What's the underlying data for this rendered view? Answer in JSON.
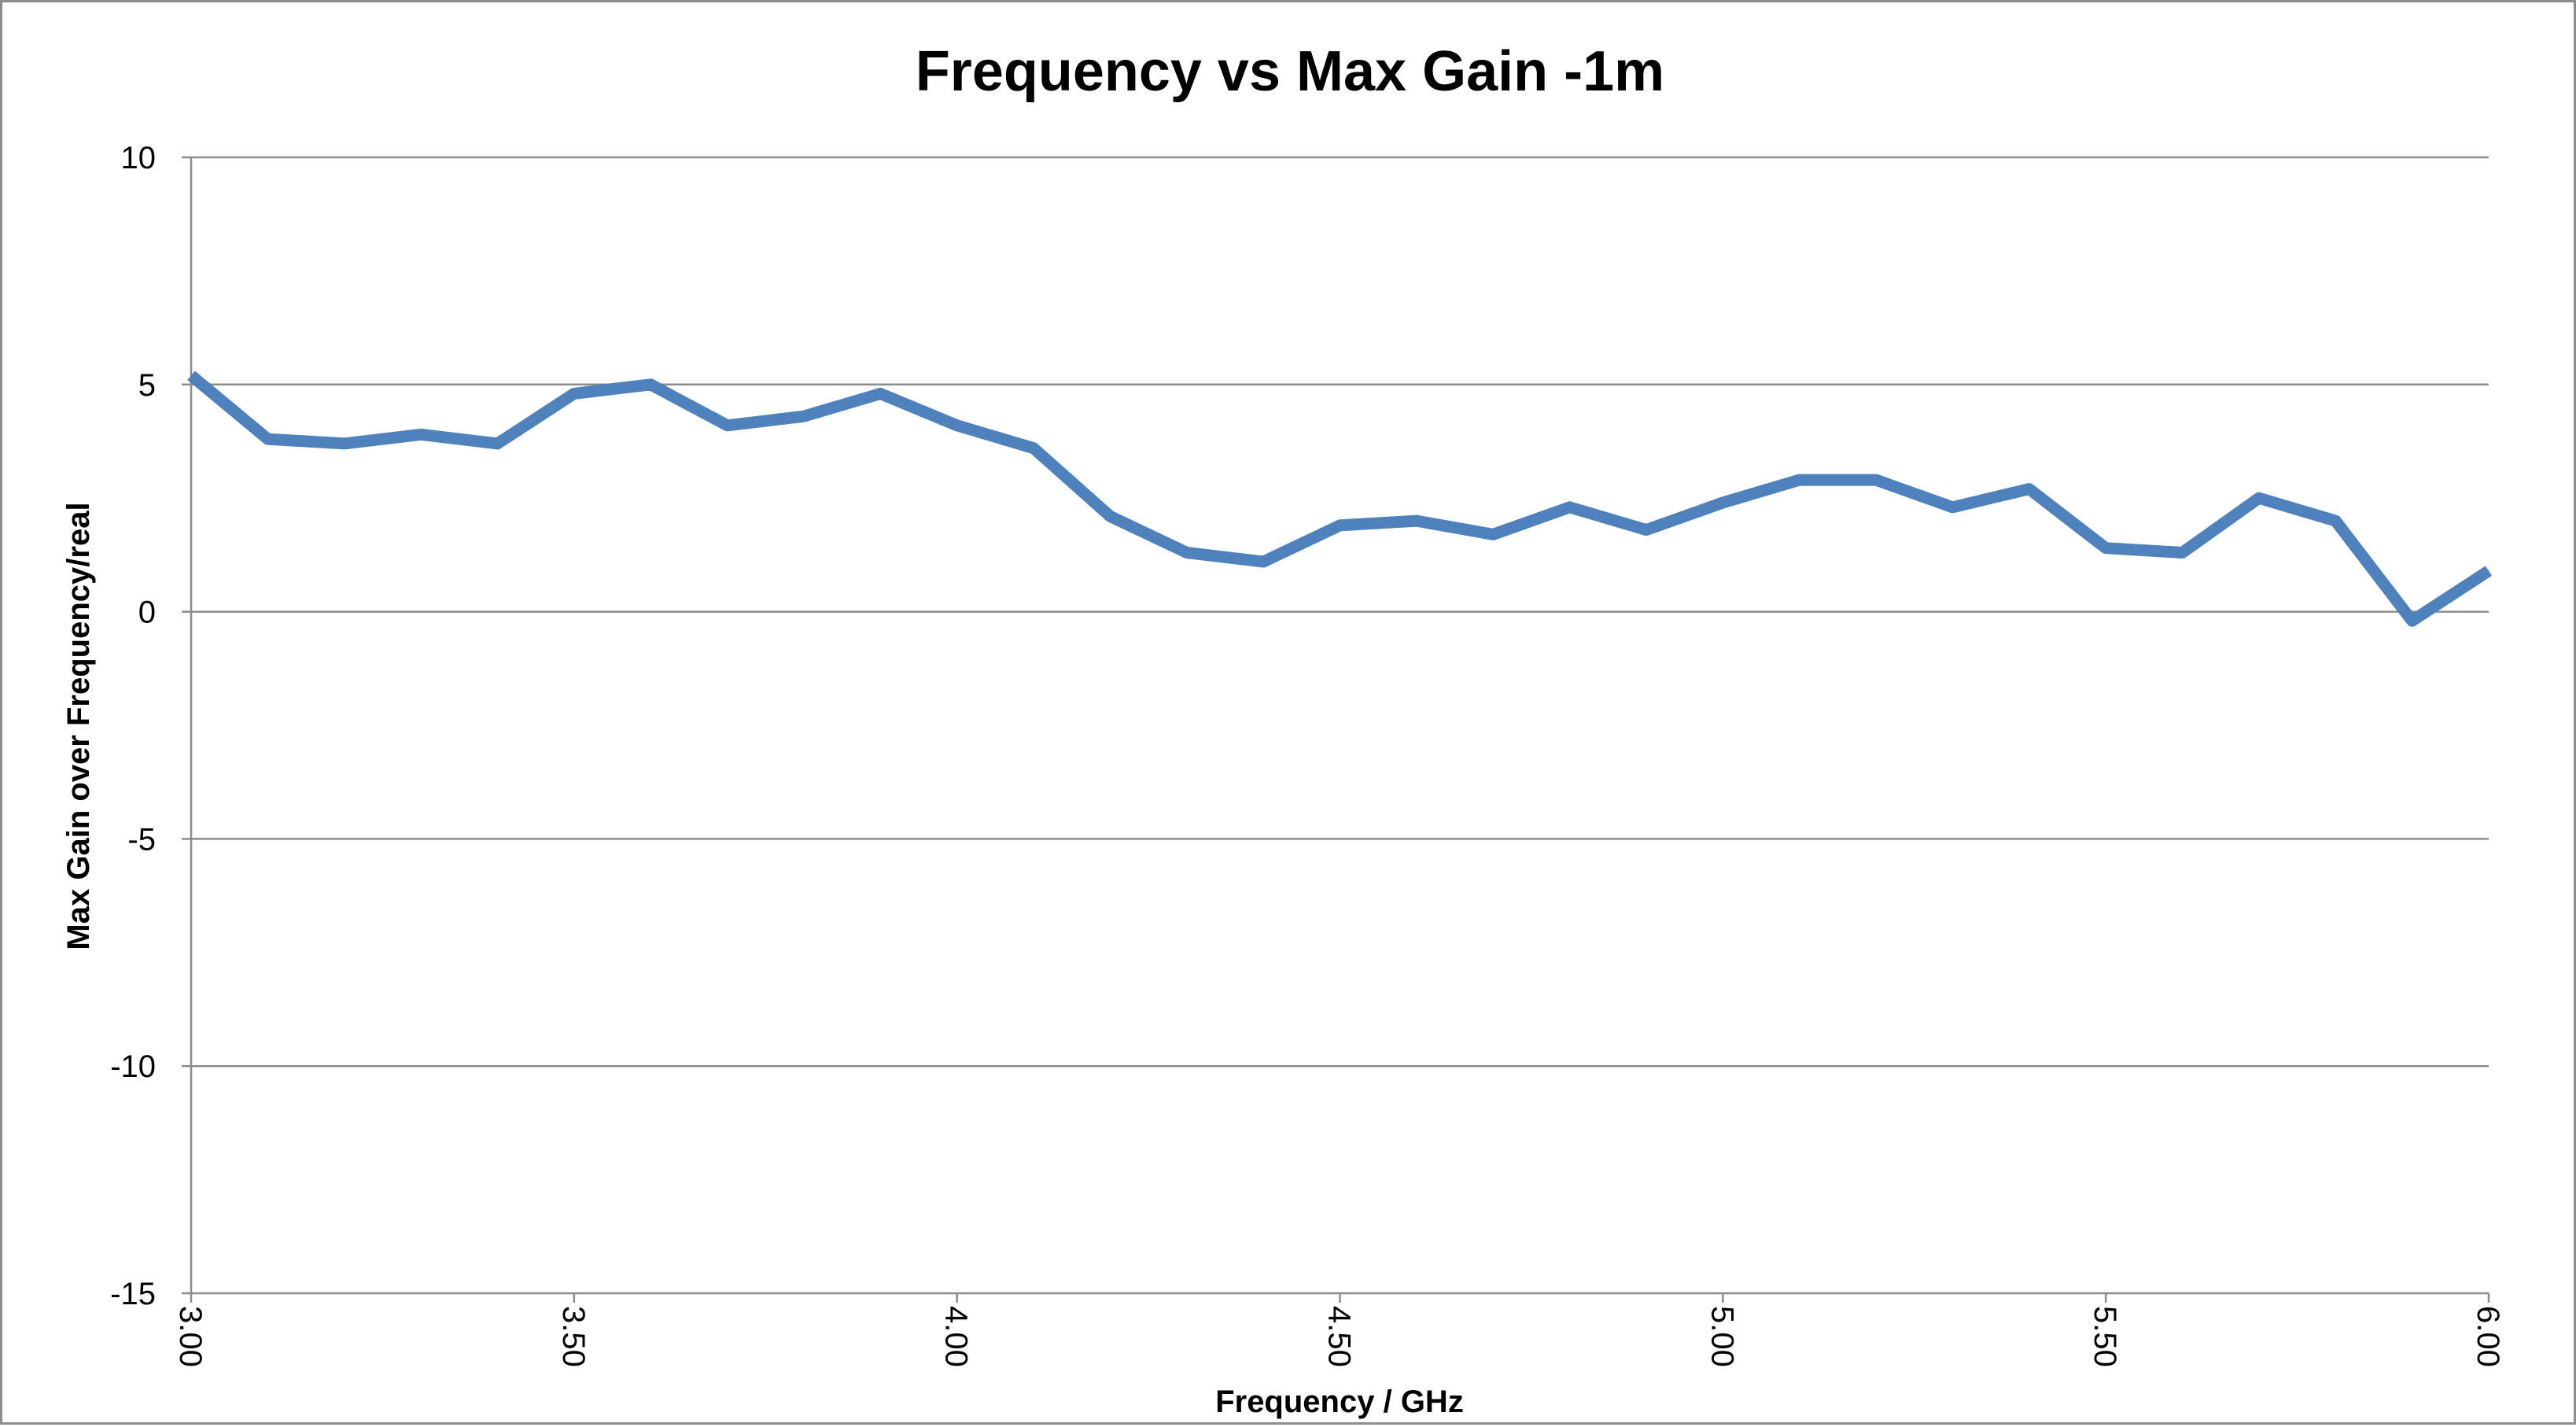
{
  "chart_data": {
    "type": "line",
    "title": "Frequency vs Max Gain -1m",
    "xlabel": "Frequency / GHz",
    "ylabel": "Max Gain over Frequency/real",
    "xlim": [
      3.0,
      6.0
    ],
    "ylim": [
      -15,
      10
    ],
    "y_ticks": [
      10,
      5,
      0,
      -5,
      -10,
      -15
    ],
    "x_tick_labels": [
      "3.00",
      "3.50",
      "4.00",
      "4.50",
      "5.00",
      "5.50",
      "6.00"
    ],
    "grid": "horizontal",
    "legend": "none",
    "series_color": "#4f81bd",
    "x": [
      3.0,
      3.1,
      3.2,
      3.3,
      3.4,
      3.5,
      3.6,
      3.7,
      3.8,
      3.9,
      4.0,
      4.1,
      4.2,
      4.3,
      4.4,
      4.5,
      4.6,
      4.7,
      4.8,
      4.9,
      5.0,
      5.1,
      5.2,
      5.3,
      5.4,
      5.5,
      5.6,
      5.7,
      5.8,
      5.9,
      6.0
    ],
    "series": [
      {
        "values": [
          5.2,
          3.8,
          3.7,
          3.9,
          3.7,
          4.8,
          5.0,
          4.1,
          4.3,
          4.8,
          4.1,
          3.6,
          2.1,
          1.3,
          1.1,
          1.9,
          2.0,
          1.7,
          2.3,
          1.8,
          2.4,
          2.9,
          2.9,
          2.3,
          2.7,
          1.4,
          1.3,
          2.5,
          2.0,
          -0.2,
          0.9
        ]
      }
    ]
  }
}
